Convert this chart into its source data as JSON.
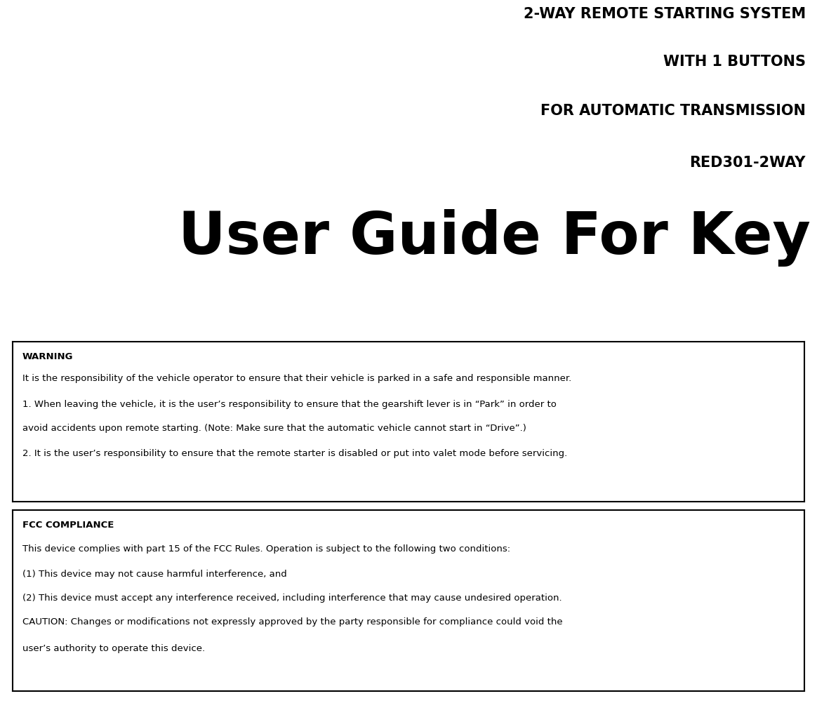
{
  "title_line1": "2-WAY REMOTE STARTING SYSTEM",
  "title_line2": "WITH 1 BUTTONS",
  "title_line3": "FOR AUTOMATIC TRANSMISSION",
  "title_line4": "RED301-2WAY",
  "title_large": "User Guide For Key",
  "warning_header": "WARNING",
  "warning_text1": "It is the responsibility of the vehicle operator to ensure that their vehicle is parked in a safe and responsible manner.",
  "warning_text2": "1. When leaving the vehicle, it is the user’s responsibility to ensure that the gearshift lever is in “Park” in order to",
  "warning_text3": "avoid accidents upon remote starting. (Note: Make sure that the automatic vehicle cannot start in “Drive”.)",
  "warning_text4": "2. It is the user’s responsibility to ensure that the remote starter is disabled or put into valet mode before servicing.",
  "fcc_header": "FCC COMPLIANCE",
  "fcc_text1": "This device complies with part 15 of the FCC Rules. Operation is subject to the following two conditions:",
  "fcc_text2": "(1) This device may not cause harmful interference, and",
  "fcc_text3": "(2) This device must accept any interference received, including interference that may cause undesired operation.",
  "fcc_text4": "CAUTION: Changes or modifications not expressly approved by the party responsible for compliance could void the",
  "fcc_text5": "user’s authority to operate this device.",
  "bg_color": "#ffffff",
  "text_color": "#000000",
  "fig_width": 11.64,
  "fig_height": 10.03,
  "dpi": 100
}
